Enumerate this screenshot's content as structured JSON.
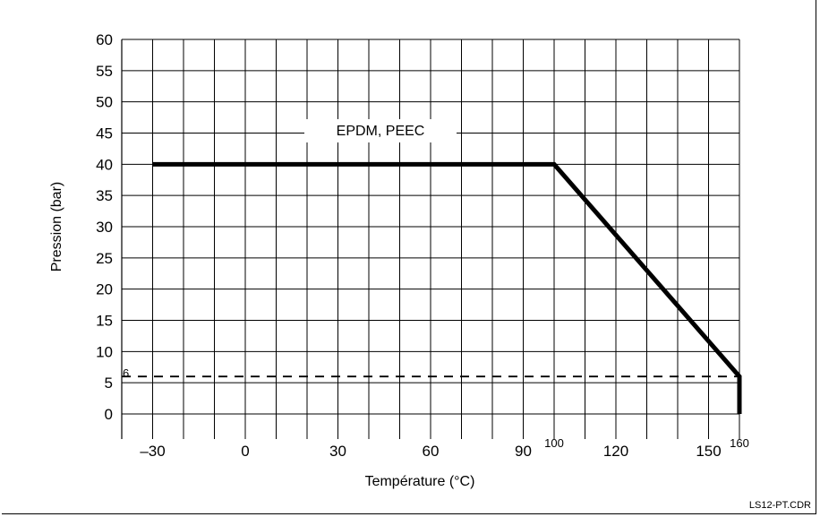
{
  "chart_data": {
    "type": "line",
    "xlabel": "Température (°C)",
    "ylabel": "Pression (bar)",
    "xlim": [
      -40,
      160
    ],
    "ylim": [
      0,
      60
    ],
    "x_ticks": [
      -30,
      0,
      30,
      60,
      90,
      120,
      150
    ],
    "x_ticks_small": [
      100,
      160
    ],
    "y_ticks": [
      0,
      5,
      10,
      15,
      20,
      25,
      30,
      35,
      40,
      45,
      50,
      55,
      60
    ],
    "grid": "on",
    "series": [
      {
        "name": "EPDM, PEEC",
        "x": [
          -30,
          100,
          160,
          160
        ],
        "y": [
          40,
          40,
          6,
          0
        ]
      }
    ],
    "reference_line": {
      "y": 6,
      "style": "dashed",
      "label": "6"
    }
  },
  "credit": "LS12-PT.CDR"
}
